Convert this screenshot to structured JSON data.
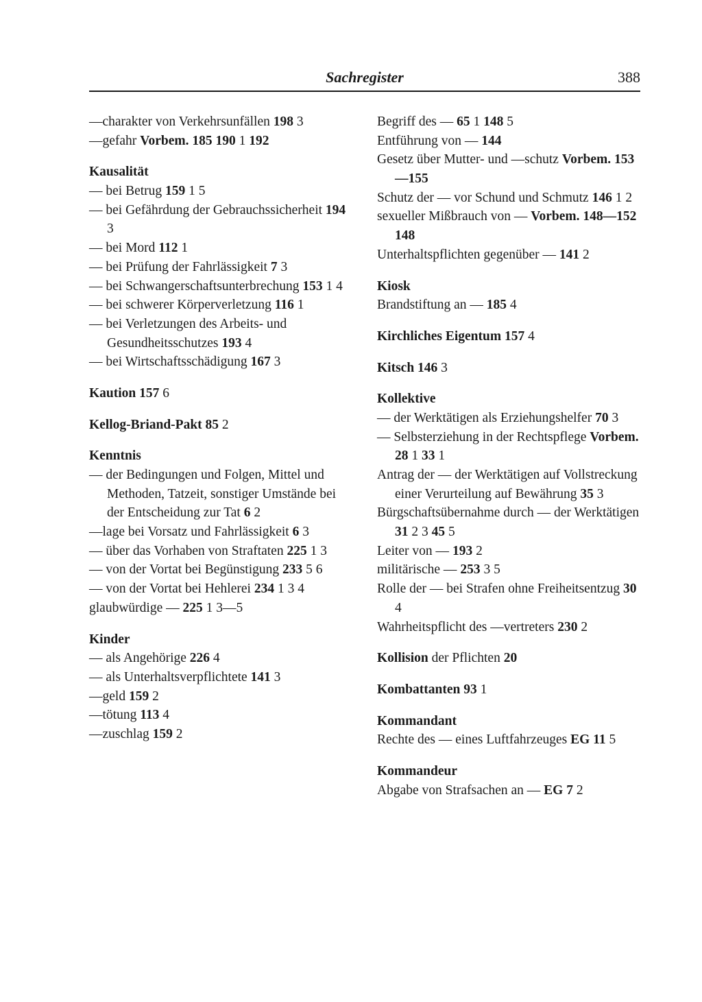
{
  "header": {
    "title": "Sachregister",
    "page": "388"
  },
  "left": [
    {
      "lines": [
        {
          "html": "—charakter von Verkehrsunfällen  <b>198</b> 3"
        },
        {
          "html": "—gefahr  <b>Vorbem. 185  190</b> 1 <b>192</b>"
        }
      ]
    },
    {
      "heading": "Kausalität",
      "lines": [
        {
          "html": "— bei Betrug  <b>159</b> 1 5"
        },
        {
          "html": "— bei Gefährdung der Gebrauchssicherheit  <b>194</b> 3"
        },
        {
          "html": "— bei Mord  <b>112</b> 1"
        },
        {
          "html": "— bei Prüfung der Fahrlässigkeit  <b>7</b> 3"
        },
        {
          "html": "— bei Schwangerschaftsunterbrechung  <b>153</b> 1 4"
        },
        {
          "html": "— bei schwerer Körperverletzung <b>116</b> 1"
        },
        {
          "html": "— bei Verletzungen des Arbeits- und Gesundheitsschutzes <b>193</b> 4"
        },
        {
          "html": "— bei Wirtschaftsschädigung <b>167</b> 3"
        }
      ]
    },
    {
      "headingLine": "<b>Kaution  157</b> 6"
    },
    {
      "headingLine": "<b>Kellog-Briand-Pakt  85</b> 2"
    },
    {
      "heading": "Kenntnis",
      "lines": [
        {
          "html": "— der Bedingungen und Folgen, Mittel und Methoden, Tatzeit, sonstiger Umstände bei der Entscheidung zur Tat  <b>6</b> 2"
        },
        {
          "html": "—lage bei Vorsatz und Fahrlässigkeit  <b>6</b> 3"
        },
        {
          "html": "— über das Vorhaben von Straftaten  <b>225</b> 1 3"
        },
        {
          "html": "— von der Vortat bei Begünstigung  <b>233</b> 5 6"
        },
        {
          "html": "— von der Vortat bei Hehlerei <b>234</b> 1 3 4"
        },
        {
          "html": "glaubwürdige —  <b>225</b> 1 3—5"
        }
      ]
    },
    {
      "heading": "Kinder",
      "lines": [
        {
          "html": "— als Angehörige  <b>226</b> 4"
        },
        {
          "html": "— als Unterhaltsverpflichtete <b>141</b> 3"
        },
        {
          "html": "—geld  <b>159</b> 2"
        },
        {
          "html": "—tötung  <b>113</b> 4"
        },
        {
          "html": "—zuschlag  <b>159</b> 2"
        }
      ]
    }
  ],
  "right": [
    {
      "lines": [
        {
          "html": "Begriff des —  <b>65</b> 1  <b>148</b> 5"
        },
        {
          "html": "Entführung von —  <b>144</b>"
        },
        {
          "html": "Gesetz über Mutter- und —schutz <b>Vorbem. 153—155</b>"
        },
        {
          "html": "Schutz der — vor Schund und Schmutz  <b>146</b> 1 2"
        },
        {
          "html": "sexueller Mißbrauch von — <b>Vorbem. 148—152  148</b>"
        },
        {
          "html": "Unterhaltspflichten gegenüber — <b>141</b> 2"
        }
      ]
    },
    {
      "heading": "Kiosk",
      "lines": [
        {
          "html": "Brandstiftung an —  <b>185</b> 4"
        }
      ]
    },
    {
      "headingLine": "<b>Kirchliches Eigentum  157</b> 4"
    },
    {
      "headingLine": "<b>Kitsch  146</b> 3"
    },
    {
      "heading": "Kollektive",
      "lines": [
        {
          "html": "— der Werktätigen als Erziehungshelfer  <b>70</b> 3"
        },
        {
          "html": "— Selbsterziehung in der Rechtspflege  <b>Vorbem. 28</b> 1 <b>33</b> 1"
        },
        {
          "html": "Antrag der — der Werktätigen auf Vollstreckung einer Verurteilung auf Bewährung <b>35</b> 3"
        },
        {
          "html": "Bürgschaftsübernahme durch — der Werktätigen  <b>31</b> 2 3 <b>45</b> 5"
        },
        {
          "html": "Leiter von —  <b>193</b> 2"
        },
        {
          "html": "militärische —  <b>253</b> 3 5"
        },
        {
          "html": "Rolle der — bei Strafen ohne Freiheitsentzug  <b>30</b> 4"
        },
        {
          "html": "Wahrheitspflicht des —vertreters <b>230</b> 2"
        }
      ]
    },
    {
      "headingLine": "<b>Kollision</b> der Pflichten  <b>20</b>"
    },
    {
      "headingLine": "<b>Kombattanten  93</b> 1"
    },
    {
      "heading": "Kommandant",
      "lines": [
        {
          "html": "Rechte des — eines Luftfahrzeuges  <b>EG 11</b> 5"
        }
      ]
    },
    {
      "heading": "Kommandeur",
      "lines": [
        {
          "html": "Abgabe von Strafsachen an — <b>EG 7</b> 2"
        }
      ]
    }
  ]
}
